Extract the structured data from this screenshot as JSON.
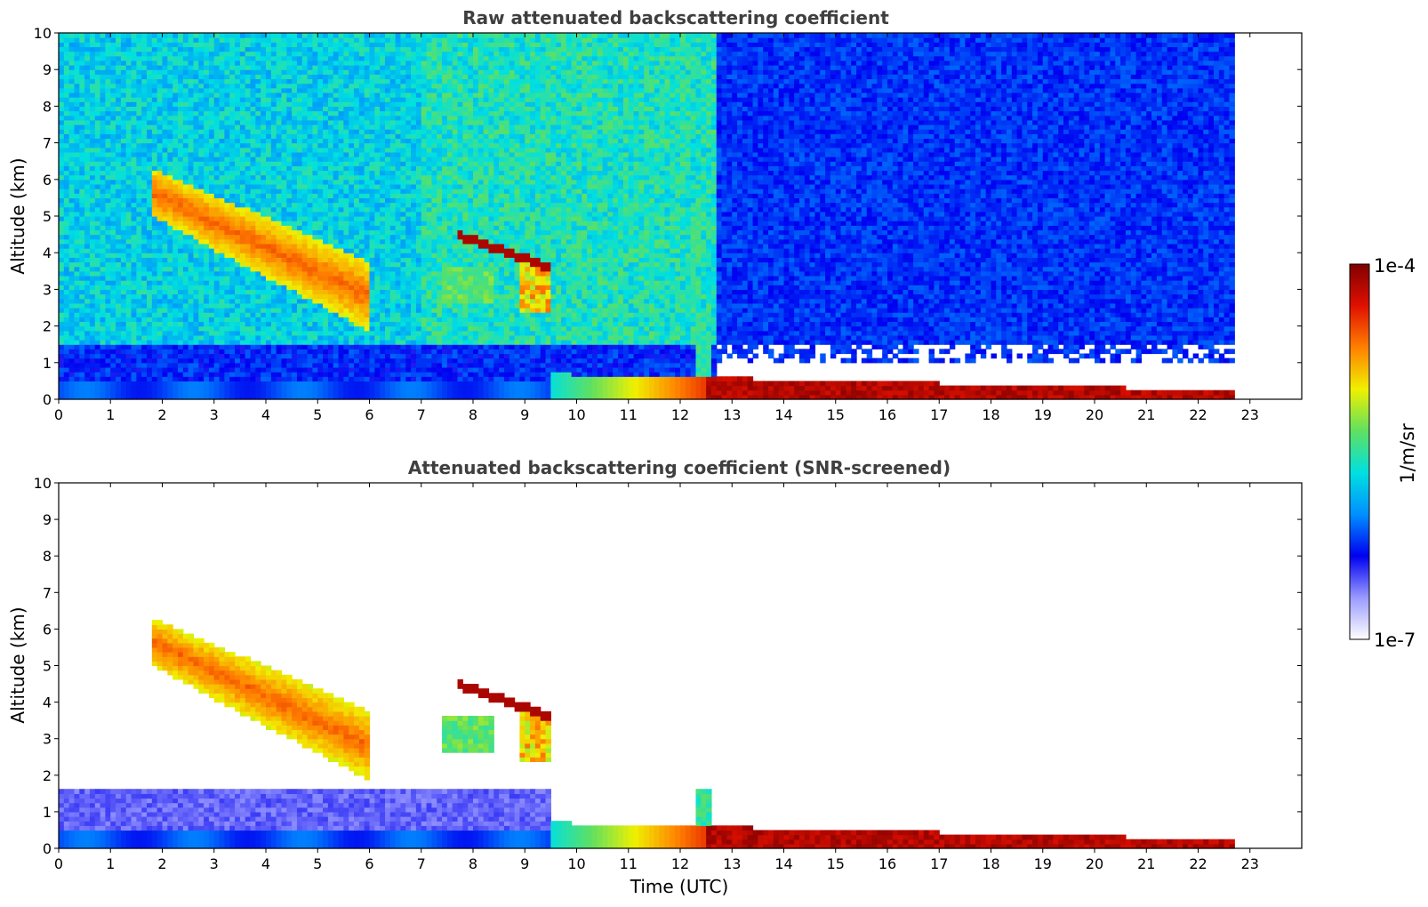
{
  "chart_data": [
    {
      "type": "heatmap",
      "title": "Raw attenuated backscattering coefficient",
      "xlabel": "",
      "ylabel": "Altitude (km)",
      "xlim": [
        0,
        24
      ],
      "ylim": [
        0,
        10
      ],
      "xticks": [
        "0",
        "1",
        "2",
        "3",
        "4",
        "5",
        "6",
        "7",
        "8",
        "9",
        "10",
        "11",
        "12",
        "13",
        "14",
        "15",
        "16",
        "17",
        "18",
        "19",
        "20",
        "21",
        "22",
        "23"
      ],
      "yticks": [
        "0",
        "1",
        "2",
        "3",
        "4",
        "5",
        "6",
        "7",
        "8",
        "9",
        "10"
      ],
      "data_end_time": 22.7,
      "features": [
        {
          "kind": "cirrus_band",
          "time_start": 1.5,
          "time_end": 6.0,
          "alt_top": 6.5,
          "alt_bottom": 1.7,
          "level": 0.62
        },
        {
          "kind": "elevated_layer",
          "time_start": 7.5,
          "time_end": 9.5,
          "alt_top": 4.5,
          "alt_bottom": 2.3,
          "level": 0.9
        },
        {
          "kind": "boundary_layer",
          "time_start": 9.5,
          "time_end": 22.7,
          "alt_top": 0.7,
          "alt_bottom": 0.0,
          "level": 0.95
        }
      ]
    },
    {
      "type": "heatmap",
      "title": "Attenuated backscattering coefficient (SNR-screened)",
      "xlabel": "Time (UTC)",
      "ylabel": "Altitude (km)",
      "xlim": [
        0,
        24
      ],
      "ylim": [
        0,
        10
      ],
      "xticks": [
        "0",
        "1",
        "2",
        "3",
        "4",
        "5",
        "6",
        "7",
        "8",
        "9",
        "10",
        "11",
        "12",
        "13",
        "14",
        "15",
        "16",
        "17",
        "18",
        "19",
        "20",
        "21",
        "22",
        "23"
      ],
      "yticks": [
        "0",
        "1",
        "2",
        "3",
        "4",
        "5",
        "6",
        "7",
        "8",
        "9",
        "10"
      ],
      "data_end_time": 22.7
    }
  ],
  "colorbar": {
    "label": "1/m/sr",
    "max_label": "1e-4",
    "min_label": "1e-7",
    "stops": [
      "#ffffff",
      "#9a9aff",
      "#0000f0",
      "#0090ff",
      "#00e0e0",
      "#60e060",
      "#f0f000",
      "#ff8000",
      "#e01000",
      "#800000"
    ]
  }
}
